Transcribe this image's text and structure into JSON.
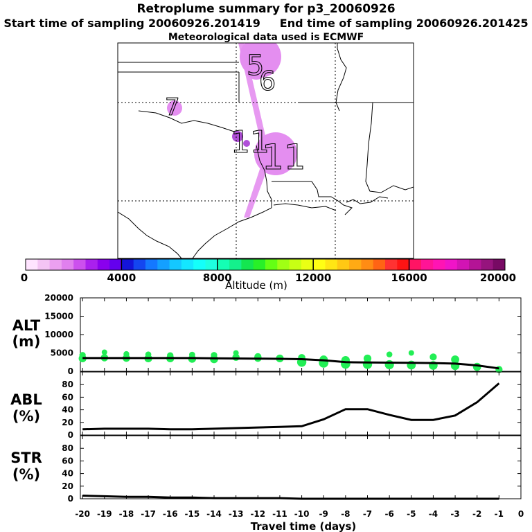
{
  "header": {
    "title": "Retroplume summary for p3_20060926",
    "start_label": "Start time of sampling 20060926.201419",
    "end_label": "End time of sampling 20060926.201425",
    "met_label": "Meteorological data used is ECMWF"
  },
  "map": {
    "day_labels": [
      "5",
      "6",
      "7",
      "11",
      "11"
    ],
    "plume_color": "#e48ef0",
    "marker_color": "#b04fd8"
  },
  "colorbar": {
    "label": "Altitude (m)",
    "tick_labels": [
      "0",
      "4000",
      "8000",
      "12000",
      "16000",
      "20000"
    ],
    "colors": [
      "#ffe4ff",
      "#f4c4f4",
      "#eca0f0",
      "#e080ee",
      "#cc50ee",
      "#aa20ee",
      "#8a00ee",
      "#6400ee",
      "#1414d8",
      "#1446f0",
      "#1478ff",
      "#14a0ff",
      "#14c8ff",
      "#14e6ff",
      "#14fffa",
      "#1effe0",
      "#14ffb4",
      "#14f08c",
      "#14e650",
      "#28f028",
      "#64ff14",
      "#a0ff14",
      "#c8ff14",
      "#eaff14",
      "#ffff14",
      "#ffe614",
      "#ffc814",
      "#ffaa14",
      "#ff8c14",
      "#ff6414",
      "#ff3232",
      "#ff1414",
      "#ff1464",
      "#ff1496",
      "#ff14b4",
      "#f014c8",
      "#d214b4",
      "#b41496",
      "#96147d",
      "#780a64"
    ]
  },
  "chart_data": [
    {
      "type": "line",
      "panel": "ALT",
      "ylabel_main": "ALT",
      "ylabel_unit": "(m)",
      "ylim": [
        0,
        20000
      ],
      "yticks": [
        "0",
        "5000",
        "10000",
        "15000",
        "20000"
      ],
      "x": [
        -20,
        -19,
        -18,
        -17,
        -16,
        -15,
        -14,
        -13,
        -12,
        -11,
        -10,
        -9,
        -8,
        -7,
        -6,
        -5,
        -4,
        -3,
        -2,
        -1
      ],
      "values": [
        3600,
        3600,
        3600,
        3600,
        3600,
        3600,
        3550,
        3500,
        3450,
        3400,
        3300,
        3000,
        2500,
        2400,
        2350,
        2300,
        2250,
        2100,
        1600,
        800
      ],
      "scatter_x": [
        -20,
        -20,
        -19,
        -19,
        -18,
        -18,
        -17,
        -17,
        -16,
        -16,
        -15,
        -15,
        -14,
        -14,
        -13,
        -13,
        -12,
        -12,
        -11,
        -10,
        -10,
        -9,
        -9,
        -8,
        -8,
        -7,
        -7,
        -6,
        -6,
        -5,
        -5,
        -4,
        -4,
        -3,
        -3,
        -2,
        -1
      ],
      "scatter_y": [
        3500,
        4400,
        3700,
        5200,
        3600,
        4700,
        3500,
        4600,
        3500,
        4300,
        3400,
        4500,
        3300,
        4400,
        3800,
        5000,
        3600,
        4000,
        3500,
        2500,
        3700,
        2300,
        3200,
        2000,
        3000,
        1900,
        3500,
        1800,
        4600,
        1700,
        5000,
        1600,
        3900,
        1500,
        3200,
        1200,
        500
      ],
      "marker_color": "#22ee55"
    },
    {
      "type": "line",
      "panel": "ABL",
      "ylabel_main": "ABL",
      "ylabel_unit": "(%)",
      "ylim": [
        0,
        100
      ],
      "yticks": [
        "0",
        "20",
        "40",
        "60",
        "80"
      ],
      "x": [
        -20,
        -19,
        -18,
        -17,
        -16,
        -15,
        -14,
        -13,
        -12,
        -11,
        -10,
        -9,
        -8,
        -7,
        -6,
        -5,
        -4,
        -3,
        -2,
        -1
      ],
      "values": [
        9,
        10,
        10,
        10,
        9,
        9,
        10,
        11,
        12,
        13,
        14,
        25,
        41,
        41,
        32,
        24,
        24,
        31,
        52,
        82
      ]
    },
    {
      "type": "line",
      "panel": "STR",
      "ylabel_main": "STR",
      "ylabel_unit": "(%)",
      "ylim": [
        0,
        100
      ],
      "yticks": [
        "0",
        "20",
        "40",
        "60",
        "80"
      ],
      "x": [
        -20,
        -19,
        -18,
        -17,
        -16,
        -15,
        -14,
        -13,
        -12,
        -11,
        -10,
        -9,
        -8,
        -7,
        -6,
        -5,
        -4,
        -3,
        -2,
        -1
      ],
      "values": [
        5,
        4,
        3,
        3,
        2,
        2,
        1,
        1,
        1,
        1,
        0,
        0,
        0,
        0,
        0,
        0,
        0,
        0,
        0,
        0
      ],
      "xlabel": "Travel time (days)",
      "xticks": [
        "-20",
        "-19",
        "-18",
        "-17",
        "-16",
        "-15",
        "-14",
        "-13",
        "-12",
        "-11",
        "-10",
        "-9",
        "-8",
        "-7",
        "-6",
        "-5",
        "-4",
        "-3",
        "-2",
        "-1",
        "0"
      ]
    }
  ]
}
